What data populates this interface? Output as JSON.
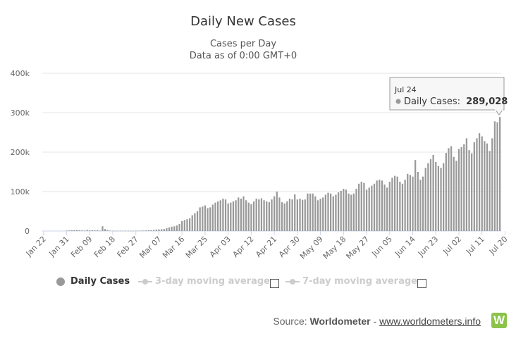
{
  "chart_data": {
    "type": "bar",
    "title": "Daily New Cases",
    "subtitle_line1": "Cases per Day",
    "subtitle_line2": "Data as of 0:00 GMT+0",
    "start_date": "Jan 22",
    "end_date": "Jul 24",
    "x_tick_labels": [
      "Jan 22",
      "Jan 31",
      "Feb 09",
      "Feb 18",
      "Feb 27",
      "Mar 07",
      "Mar 16",
      "Mar 25",
      "Apr 03",
      "Apr 12",
      "Apr 21",
      "Apr 30",
      "May 09",
      "May 18",
      "May 27",
      "Jun 05",
      "Jun 14",
      "Jun 23",
      "Jul 02",
      "Jul 11",
      "Jul 20"
    ],
    "y_tick_labels": [
      "0",
      "100k",
      "200k",
      "300k",
      "400k"
    ],
    "ylim": [
      0,
      400000
    ],
    "series": [
      {
        "name": "Daily Cases",
        "color": "#999999",
        "values": [
          0,
          0,
          0,
          0,
          0,
          0,
          0,
          0,
          0,
          1000,
          1500,
          2000,
          2000,
          2500,
          2000,
          1500,
          1200,
          2500,
          1500,
          2000,
          1500,
          2000,
          1000,
          12000,
          5000,
          2000,
          1000,
          600,
          600,
          800,
          600,
          800,
          600,
          600,
          500,
          700,
          900,
          700,
          1000,
          1200,
          1500,
          1800,
          2000,
          2500,
          3500,
          4000,
          4500,
          5000,
          7000,
          9000,
          11000,
          12000,
          14000,
          18000,
          25000,
          28000,
          30000,
          32000,
          40000,
          45000,
          50000,
          60000,
          62000,
          65000,
          58000,
          60000,
          67000,
          72000,
          75000,
          78000,
          82000,
          80000,
          70000,
          72000,
          75000,
          78000,
          85000,
          82000,
          88000,
          78000,
          72000,
          68000,
          75000,
          82000,
          80000,
          83000,
          78000,
          75000,
          73000,
          80000,
          88000,
          100000,
          85000,
          73000,
          70000,
          75000,
          82000,
          80000,
          93000,
          80000,
          82000,
          79000,
          80000,
          95000,
          95000,
          95000,
          88000,
          78000,
          82000,
          85000,
          92000,
          97000,
          95000,
          88000,
          92000,
          98000,
          102000,
          107000,
          105000,
          95000,
          92000,
          95000,
          107000,
          120000,
          125000,
          122000,
          105000,
          110000,
          115000,
          120000,
          128000,
          130000,
          128000,
          118000,
          110000,
          125000,
          135000,
          140000,
          138000,
          125000,
          120000,
          130000,
          145000,
          142000,
          138000,
          180000,
          150000,
          130000,
          138000,
          160000,
          172000,
          182000,
          193000,
          175000,
          165000,
          160000,
          172000,
          198000,
          210000,
          215000,
          188000,
          178000,
          208000,
          213000,
          220000,
          235000,
          205000,
          197000,
          225000,
          235000,
          248000,
          240000,
          228000,
          222000,
          203000,
          235000,
          278000,
          276000,
          289028
        ]
      }
    ],
    "legend": [
      {
        "label": "Daily Cases",
        "active": true
      },
      {
        "label": "3-day moving average",
        "active": false
      },
      {
        "label": "7-day moving average",
        "active": false
      }
    ],
    "tooltip": {
      "date": "Jul 24",
      "series_label": "Daily Cases:",
      "value": "289,028"
    },
    "grid": true,
    "legend_position": "bottom"
  },
  "source": {
    "prefix": "Source:",
    "name": "Worldometer",
    "separator": "-",
    "link_text": "www.worldometers.info",
    "logo_letter": "W"
  },
  "colors": {
    "bar": "#999999",
    "grid": "#e6e6e6",
    "axis_text": "#666666",
    "disabled_legend": "#cccccc",
    "logo": "#8bc34a"
  }
}
